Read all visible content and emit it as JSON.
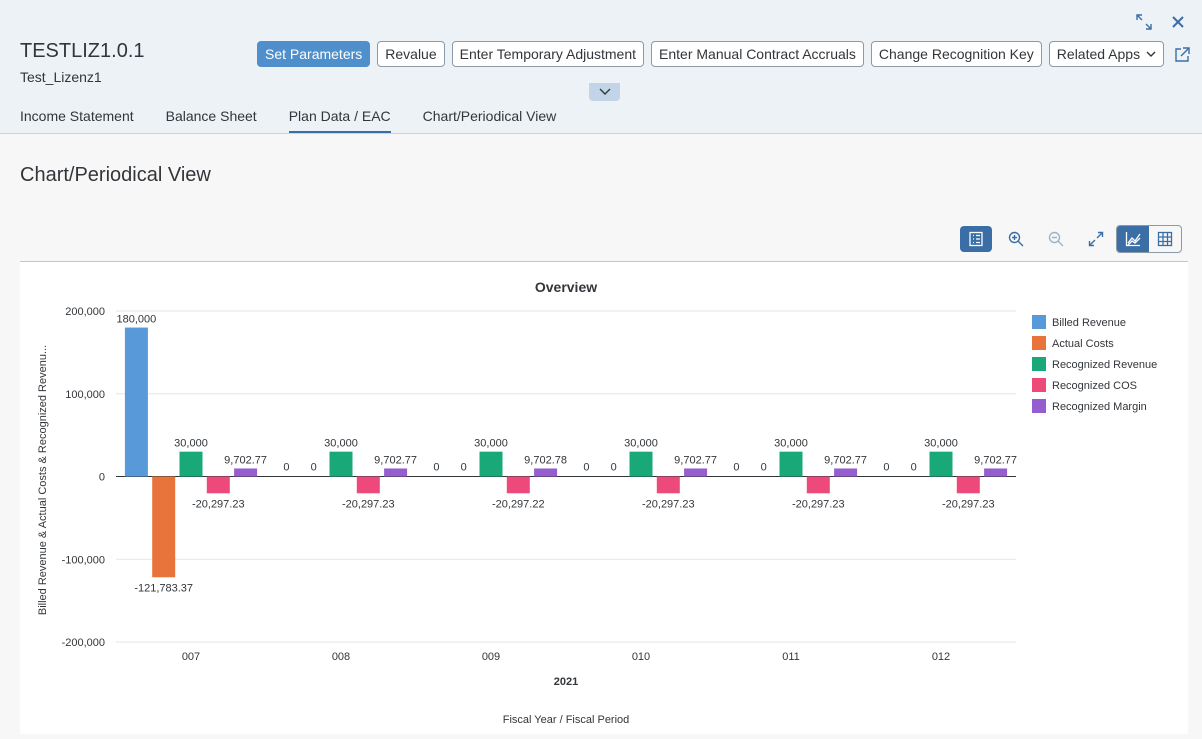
{
  "object": {
    "title": "TESTLIZ1.0.1",
    "subtitle": "Test_Lizenz1"
  },
  "top_icons": [
    "exit-fullscreen-icon",
    "close-icon"
  ],
  "toolbar": {
    "set_parameters": "Set Parameters",
    "revalue": "Revalue",
    "enter_temporary_adjustment": "Enter Temporary Adjustment",
    "enter_manual_contract_accruals": "Enter Manual Contract Accruals",
    "change_recognition_key": "Change Recognition Key",
    "related_apps": "Related Apps"
  },
  "tabs": [
    {
      "label": "Income Statement",
      "active": false
    },
    {
      "label": "Balance Sheet",
      "active": false
    },
    {
      "label": "Plan Data / EAC",
      "active": true
    },
    {
      "label": "Chart/Periodical View",
      "active": false
    }
  ],
  "section": {
    "title": "Chart/Periodical View"
  },
  "colors": {
    "primary": "#4f8fcb",
    "billed_revenue": "#5899da",
    "actual_costs": "#e8743b",
    "recognized_revenue": "#19a979",
    "recognized_cos": "#ed4a7b",
    "recognized_margin": "#945ecf"
  },
  "chart_data": {
    "type": "bar",
    "title": "Overview",
    "ylabel": "Billed Revenue & Actual Costs & Recognized Revenu...",
    "xlabel": "Fiscal Year / Fiscal Period",
    "x_group_label": "2021",
    "categories": [
      "007",
      "008",
      "009",
      "010",
      "011",
      "012"
    ],
    "ylim": [
      -200000,
      200000
    ],
    "yticks": [
      200000,
      100000,
      0,
      -100000,
      -200000
    ],
    "ytick_labels": [
      "200,000",
      "100,000",
      "0",
      "-100,000",
      "-200,000"
    ],
    "grid": true,
    "legend_position": "right",
    "series": [
      {
        "name": "Billed Revenue",
        "color": "#5899da",
        "values": [
          180000,
          0,
          0,
          0,
          0,
          0
        ],
        "labels": [
          "180,000",
          "0",
          "0",
          "0",
          "0",
          "0"
        ]
      },
      {
        "name": "Actual Costs",
        "color": "#e8743b",
        "values": [
          -121783.37,
          0,
          0,
          0,
          0,
          0
        ],
        "labels": [
          "-121,783.37",
          "0",
          "0",
          "0",
          "0",
          "0"
        ]
      },
      {
        "name": "Recognized Revenue",
        "color": "#19a979",
        "values": [
          30000,
          30000,
          30000,
          30000,
          30000,
          30000
        ],
        "labels": [
          "30,000",
          "30,000",
          "30,000",
          "30,000",
          "30,000",
          "30,000"
        ]
      },
      {
        "name": "Recognized COS",
        "color": "#ed4a7b",
        "values": [
          -20297.23,
          -20297.23,
          -20297.22,
          -20297.23,
          -20297.23,
          -20297.23
        ],
        "labels": [
          "-20,297.23",
          "-20,297.23",
          "-20,297.22",
          "-20,297.23",
          "-20,297.23",
          "-20,297.23"
        ]
      },
      {
        "name": "Recognized Margin",
        "color": "#945ecf",
        "values": [
          9702.77,
          9702.77,
          9702.78,
          9702.77,
          9702.77,
          9702.77
        ],
        "labels": [
          "9,702.77",
          "9,702.77",
          "9,702.78",
          "9,702.77",
          "9,702.77",
          "9,702.77"
        ]
      }
    ]
  }
}
